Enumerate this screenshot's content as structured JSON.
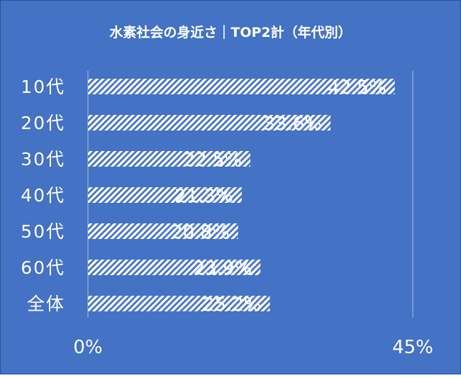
{
  "colors": {
    "background": "#4472c4",
    "border": "#2f528f",
    "bar_stripe": "#ffffff",
    "axis_line": "#a9bfe6",
    "text": "#ffffff"
  },
  "chart_data": {
    "type": "bar",
    "orientation": "horizontal",
    "title": "水素社会の身近さ｜TOP2計（年代別）",
    "categories": [
      "10代",
      "20代",
      "30代",
      "40代",
      "50代",
      "60代",
      "全体"
    ],
    "values": [
      42.5,
      33.6,
      22.5,
      21.3,
      20.8,
      23.9,
      25.2
    ],
    "value_labels": [
      "42.5%",
      "33.6%",
      "22.5%",
      "21.3%",
      "20.8%",
      "23.9%",
      "25.2%"
    ],
    "xlim": [
      0,
      45
    ],
    "x_tick_labels": [
      "0%",
      "45%"
    ],
    "grid": false,
    "bar_fill": "diagonal-stripes"
  }
}
